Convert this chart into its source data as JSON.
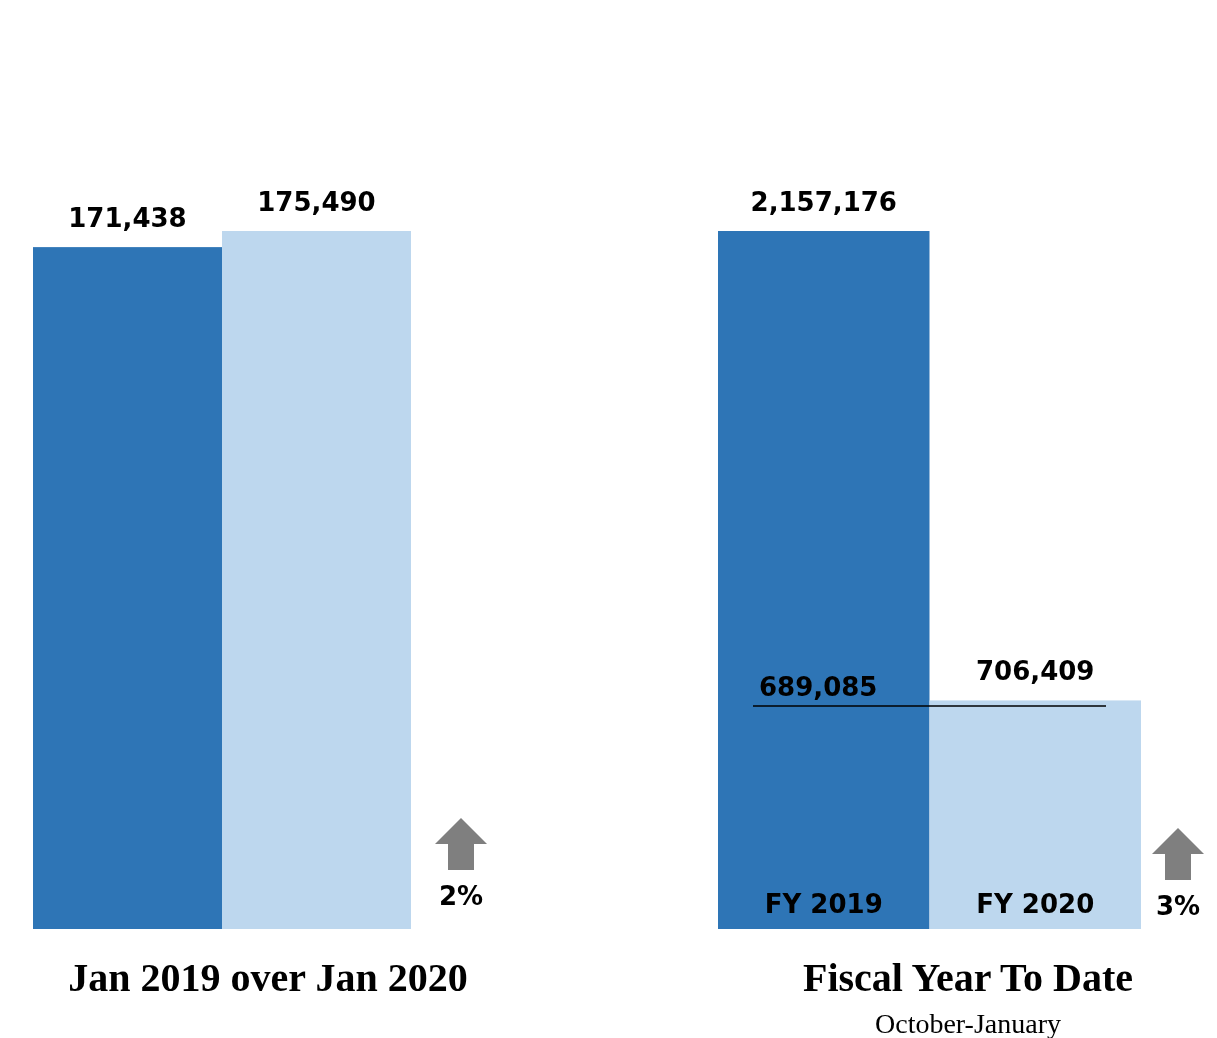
{
  "chart_data": [
    {
      "type": "bar",
      "title": "Jan 2019 over Jan 2020",
      "categories": [
        null,
        null
      ],
      "values": [
        171438,
        175490
      ],
      "colors": [
        "#2e75b6",
        "#bdd7ee"
      ],
      "value_labels": [
        "171,438",
        "175,490"
      ],
      "annotations": [
        "2%"
      ]
    },
    {
      "type": "bar",
      "title": "Fiscal Year To Date",
      "subtitle": "October-January",
      "categories": [
        "FY 2019",
        "FY 2020"
      ],
      "values": [
        2157176,
        706409
      ],
      "colors": [
        "#2e75b6",
        "#bdd7ee"
      ],
      "value_labels": [
        "2,157,176",
        "706,409"
      ],
      "ref_lines": [
        {
          "axis": "y",
          "value": 689085,
          "label": "689,085",
          "color": "#000000"
        }
      ],
      "annotations": [
        "3%"
      ]
    }
  ]
}
